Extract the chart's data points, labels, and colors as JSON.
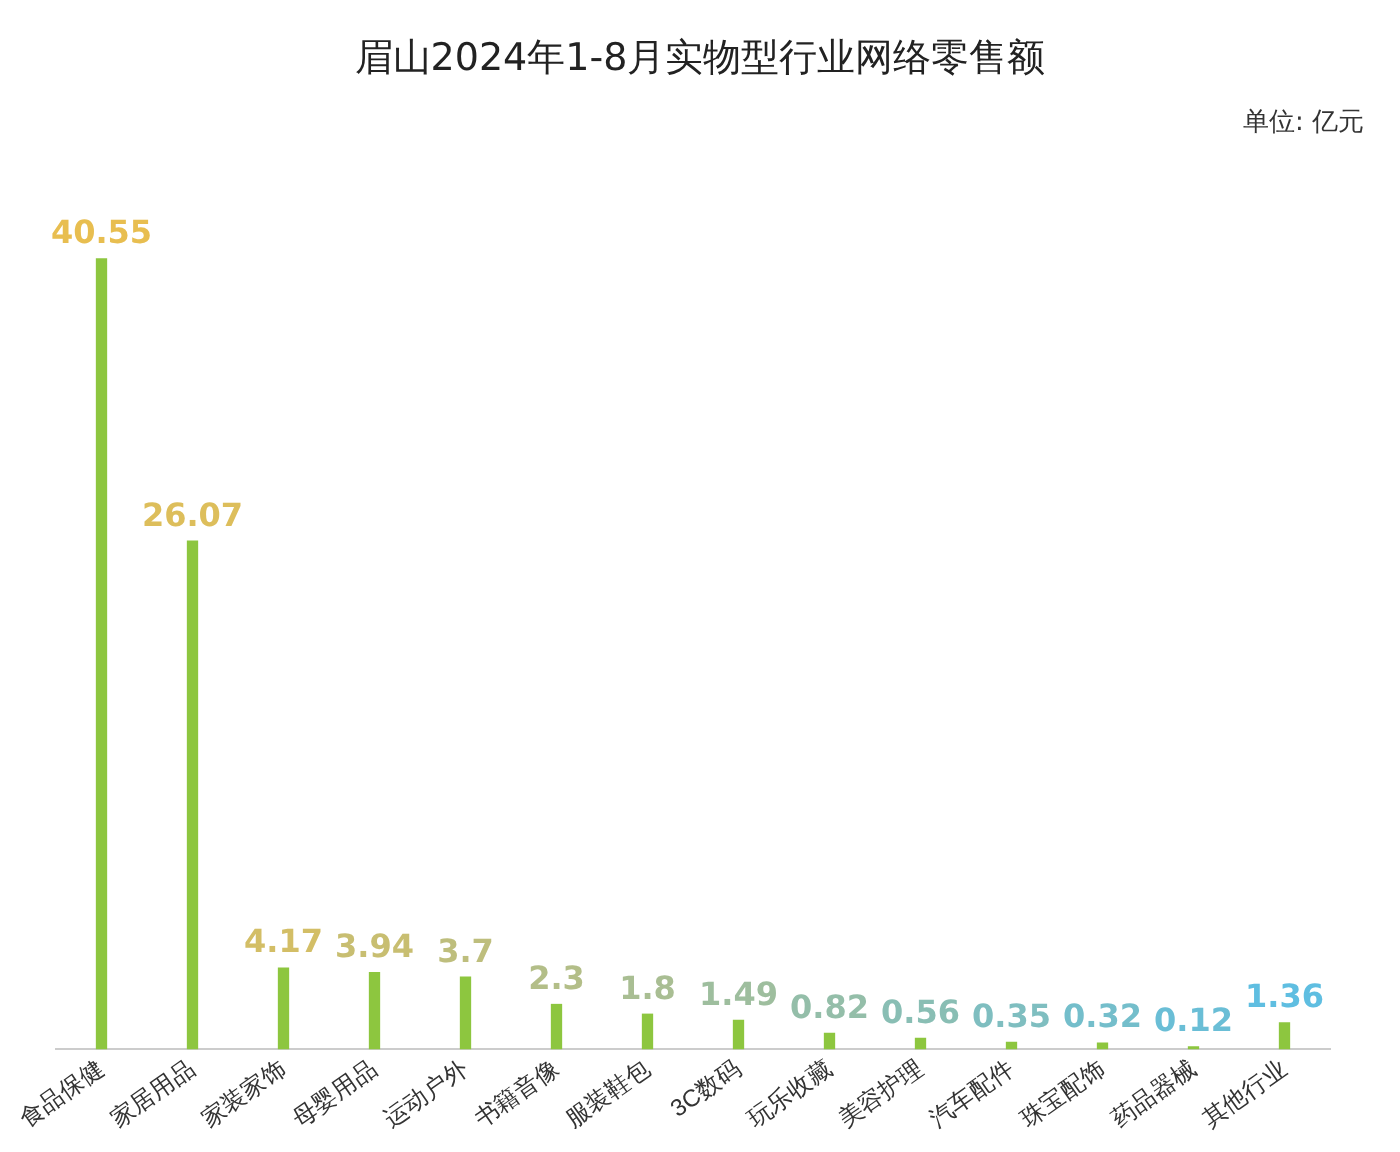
{
  "chart_data": {
    "type": "bar",
    "title": "眉山2024年1-8月实物型行业网络零售额",
    "annotations": [
      "单位: 亿元"
    ],
    "categories": [
      "食品保健",
      "家居用品",
      "家装家饰",
      "母婴用品",
      "运动户外",
      "书籍音像",
      "服装鞋包",
      "3C数码",
      "玩乐收藏",
      "美容护理",
      "汽车配件",
      "珠宝配饰",
      "药品器械",
      "其他行业"
    ],
    "values": [
      40.55,
      26.07,
      4.17,
      3.94,
      3.7,
      2.3,
      1.8,
      1.49,
      0.82,
      0.56,
      0.35,
      0.32,
      0.12,
      1.36
    ],
    "color": "#8dc63f",
    "data_labels": true,
    "relative": false,
    "grid": false,
    "legend": false
  }
}
